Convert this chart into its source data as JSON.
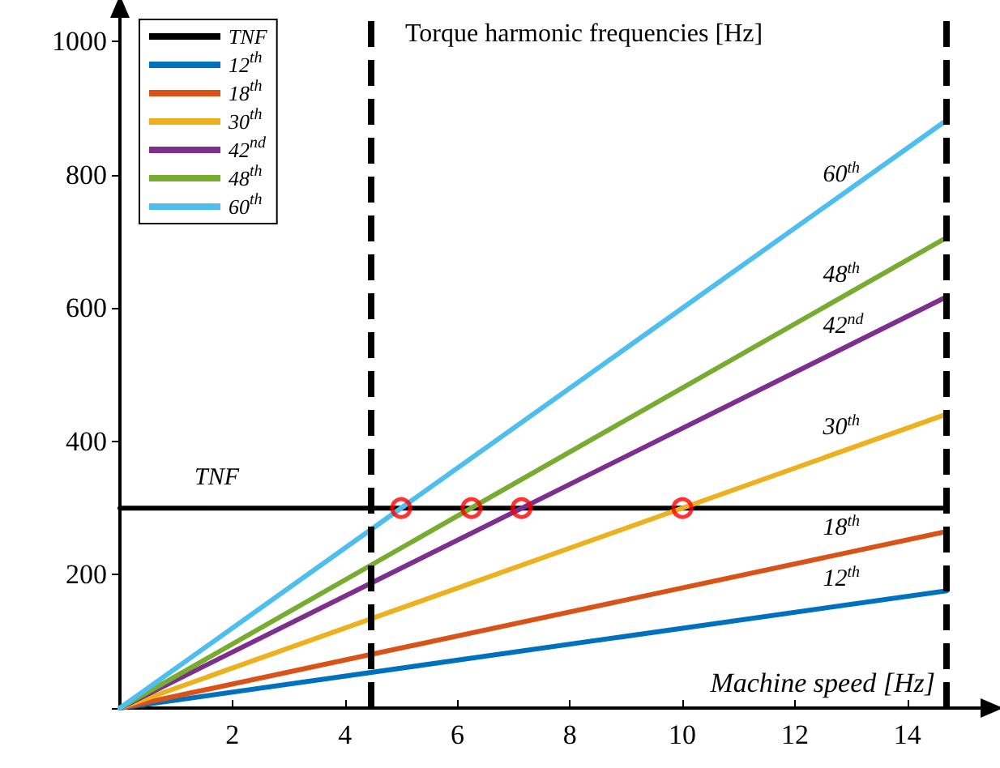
{
  "chart_data": {
    "type": "line",
    "title": "Torque harmonic frequencies [Hz]",
    "xlabel": "Machine speed [Hz]",
    "xlim": [
      0,
      15.3
    ],
    "ylim": [
      0,
      1050
    ],
    "xticks": [
      2,
      4,
      6,
      8,
      10,
      12,
      14
    ],
    "yticks": [
      {
        "value": 0,
        "label": null
      },
      200,
      400,
      600,
      800,
      1000
    ],
    "legend": "top left",
    "marker": "none",
    "line_style": "solid",
    "ref_lines": [
      {
        "axis": "x",
        "value": 4.45,
        "color": "#000000",
        "line_style": "dashed"
      },
      {
        "axis": "x",
        "value": 14.7,
        "color": "#000000",
        "line_style": "dashed"
      }
    ],
    "series": [
      {
        "name": "TNF",
        "color": "#000000",
        "x": [
          0,
          14.7
        ],
        "values": [
          300,
          300
        ]
      },
      {
        "name": "12$^{th}$",
        "color": "#0072bd",
        "x": [
          0,
          14.7
        ],
        "values": [
          0,
          176
        ]
      },
      {
        "name": "18$^{th}$",
        "color": "#d95319",
        "x": [
          0,
          14.7
        ],
        "values": [
          0,
          265
        ]
      },
      {
        "name": "30$^{th}$",
        "color": "#edb120",
        "x": [
          0,
          14.7
        ],
        "values": [
          0,
          441
        ]
      },
      {
        "name": "42$^{nd}$",
        "color": "#7e2f8e",
        "x": [
          0,
          14.7
        ],
        "values": [
          0,
          617
        ]
      },
      {
        "name": "48$^{th}$",
        "color": "#77ac30",
        "x": [
          0,
          14.7
        ],
        "values": [
          0,
          706
        ]
      },
      {
        "name": "60$^{th}$",
        "color": "#4dbeee",
        "x": [
          0,
          14.7
        ],
        "values": [
          0,
          882
        ]
      },
      {
        "type": "scatter",
        "marker": "circle",
        "color": "#ff0000",
        "x": [
          5,
          6.25,
          7.14,
          10
        ],
        "values": [
          300,
          300,
          300,
          300
        ]
      }
    ]
  }
}
